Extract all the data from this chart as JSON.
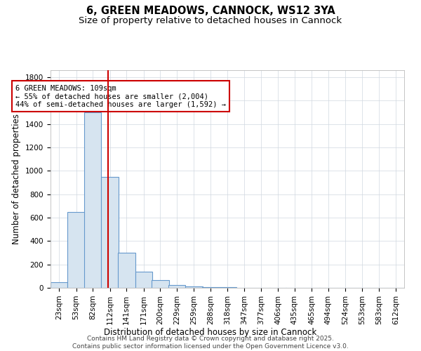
{
  "title": "6, GREEN MEADOWS, CANNOCK, WS12 3YA",
  "subtitle": "Size of property relative to detached houses in Cannock",
  "xlabel": "Distribution of detached houses by size in Cannock",
  "ylabel": "Number of detached properties",
  "bin_labels": [
    "23sqm",
    "53sqm",
    "82sqm",
    "112sqm",
    "141sqm",
    "171sqm",
    "200sqm",
    "229sqm",
    "259sqm",
    "288sqm",
    "318sqm",
    "347sqm",
    "377sqm",
    "406sqm",
    "435sqm",
    "465sqm",
    "494sqm",
    "524sqm",
    "553sqm",
    "583sqm",
    "612sqm"
  ],
  "bin_left_edges": [
    23,
    53,
    82,
    112,
    141,
    171,
    200,
    229,
    259,
    288,
    318,
    347,
    377,
    406,
    435,
    465,
    494,
    524,
    553,
    583,
    612
  ],
  "bar_heights": [
    50,
    650,
    1500,
    950,
    300,
    140,
    65,
    25,
    15,
    5,
    5,
    0,
    0,
    0,
    0,
    0,
    0,
    0,
    0,
    0,
    0
  ],
  "bar_color": "#d6e4f0",
  "bar_edgecolor": "#6699cc",
  "grid_color": "#d0d8e0",
  "background_color": "#ffffff",
  "red_line_x": 109,
  "annotation_text": "6 GREEN MEADOWS: 109sqm\n← 55% of detached houses are smaller (2,004)\n44% of semi-detached houses are larger (1,592) →",
  "annotation_box_edgecolor": "#cc0000",
  "annotation_box_facecolor": "#ffffff",
  "red_line_color": "#cc0000",
  "ylim": [
    0,
    1860
  ],
  "yticks": [
    0,
    200,
    400,
    600,
    800,
    1000,
    1200,
    1400,
    1600,
    1800
  ],
  "footer_text": "Contains HM Land Registry data © Crown copyright and database right 2025.\nContains public sector information licensed under the Open Government Licence v3.0.",
  "title_fontsize": 10.5,
  "subtitle_fontsize": 9.5,
  "axis_label_fontsize": 8.5,
  "tick_fontsize": 7.5,
  "annotation_fontsize": 7.5,
  "footer_fontsize": 6.5
}
